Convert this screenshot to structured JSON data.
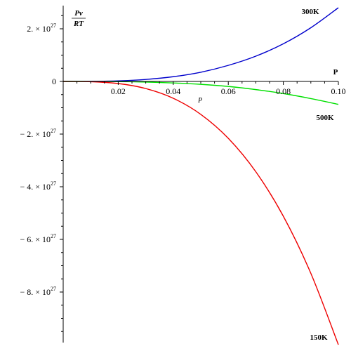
{
  "chart_data": {
    "type": "line",
    "xlabel": "P",
    "x_note": "P",
    "ylabel": {
      "numerator": "Pv",
      "denominator": "RT"
    },
    "xlim": [
      0,
      0.1
    ],
    "ylim": [
      -1e+28,
      2.8e+27
    ],
    "x_ticks": [
      {
        "value": 0.02,
        "label": "0.02"
      },
      {
        "value": 0.04,
        "label": "0.04"
      },
      {
        "value": 0.06,
        "label": "0.06"
      },
      {
        "value": 0.08,
        "label": "0.08"
      },
      {
        "value": 0.1,
        "label": "0.10"
      }
    ],
    "y_ticks": [
      {
        "value": 2e+27,
        "mant": "2.",
        "exp": "27"
      },
      {
        "value": 0,
        "mant": "0",
        "exp": ""
      },
      {
        "value": -2e+27,
        "mant": "− 2.",
        "exp": "27"
      },
      {
        "value": -4e+27,
        "mant": "− 4.",
        "exp": "27"
      },
      {
        "value": -6e+27,
        "mant": "− 6.",
        "exp": "27"
      },
      {
        "value": -8e+27,
        "mant": "− 8.",
        "exp": "27"
      }
    ],
    "times_sign": "× 10",
    "series": [
      {
        "name": "300K",
        "color": "#0000cc",
        "x": [
          0,
          0.01,
          0.02,
          0.03,
          0.04,
          0.05,
          0.06,
          0.07,
          0.08,
          0.09,
          0.1
        ],
        "y": [
          0,
          3e+24,
          2.2e+25,
          7.6e+25,
          1.8e+26,
          3.5e+26,
          6.1e+26,
          9.6e+26,
          1.43e+27,
          2.04e+27,
          2.8e+27
        ]
      },
      {
        "name": "500K",
        "color": "#00e000",
        "x": [
          0,
          0.01,
          0.02,
          0.03,
          0.04,
          0.05,
          0.06,
          0.07,
          0.08,
          0.09,
          0.1
        ],
        "y": [
          0,
          -1e+24,
          -7e+24,
          -2.4e+25,
          -5.8e+25,
          -1.1e+26,
          -1.9e+26,
          -3.1e+26,
          -4.6e+26,
          -6.5e+26,
          -8.7e+26
        ]
      },
      {
        "name": "150K",
        "color": "#ee0000",
        "x": [
          0,
          0.01,
          0.02,
          0.03,
          0.04,
          0.05,
          0.06,
          0.07,
          0.08,
          0.09,
          0.1
        ],
        "y": [
          0,
          -1e+25,
          -8e+25,
          -2.7e+26,
          -6.4e+26,
          -1.25e+27,
          -2.16e+27,
          -3.43e+27,
          -5.12e+27,
          -7.29e+27,
          -1e+28
        ]
      }
    ]
  }
}
